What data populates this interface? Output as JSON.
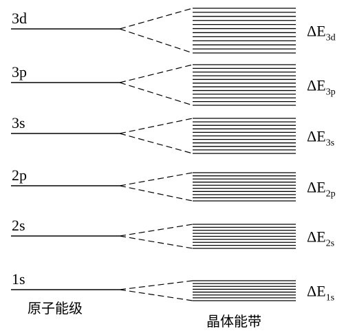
{
  "diagram": {
    "atomic_label": "原子能级",
    "crystal_label": "晶体能带",
    "delta_symbol": "ΔE",
    "levels": [
      {
        "name": "3d",
        "sub": "3d",
        "band_lines": 12
      },
      {
        "name": "3p",
        "sub": "3p",
        "band_lines": 12
      },
      {
        "name": "3s",
        "sub": "3s",
        "band_lines": 11
      },
      {
        "name": "2p",
        "sub": "2p",
        "band_lines": 10
      },
      {
        "name": "2s",
        "sub": "2s",
        "band_lines": 9
      },
      {
        "name": "1s",
        "sub": "1s",
        "band_lines": 8
      }
    ],
    "colors": {
      "line": "#000000",
      "background": "#ffffff"
    }
  }
}
